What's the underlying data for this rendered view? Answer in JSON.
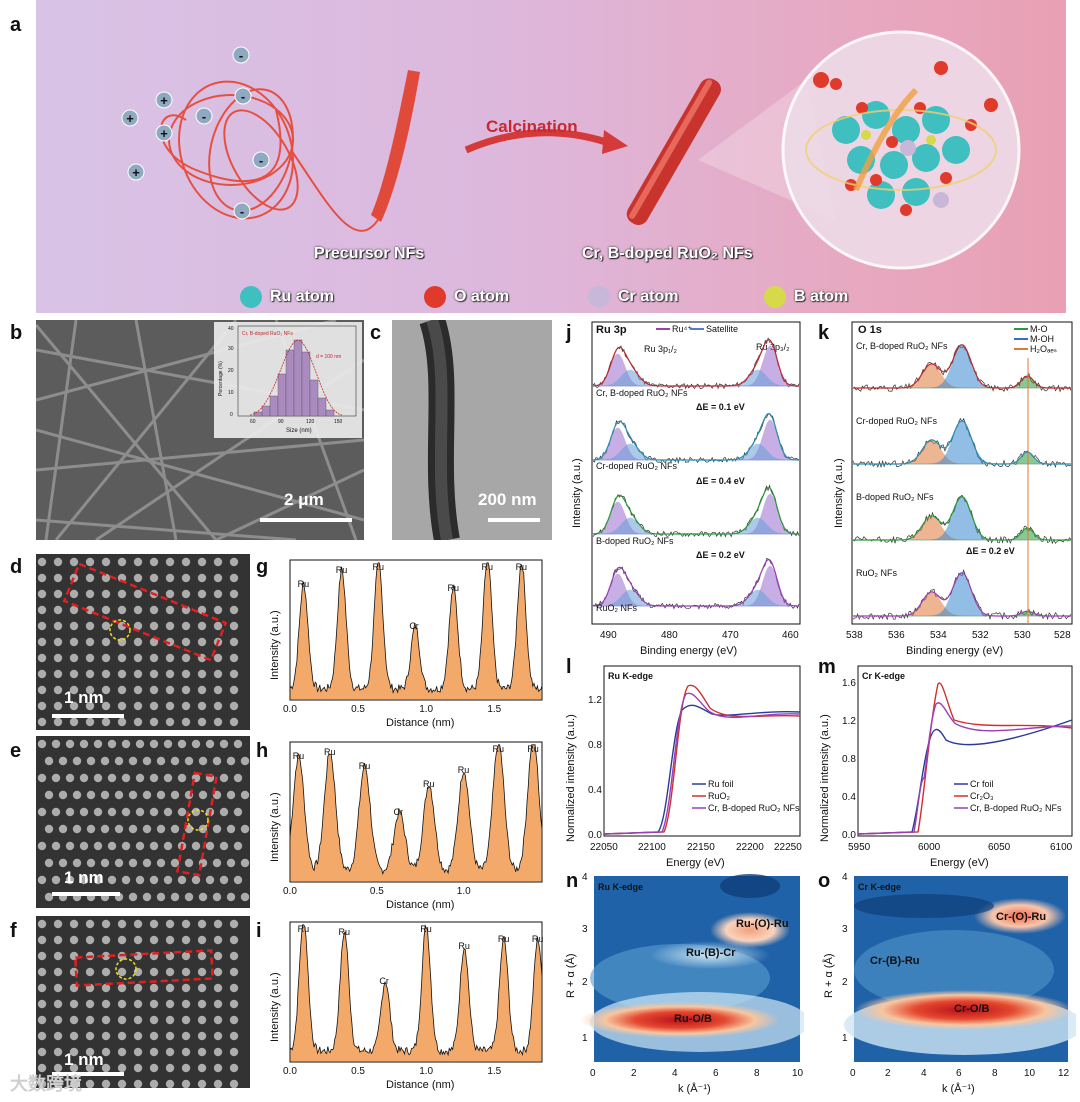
{
  "panel_letters": {
    "a": "a",
    "b": "b",
    "c": "c",
    "d": "d",
    "e": "e",
    "f": "f",
    "g": "g",
    "h": "h",
    "i": "i",
    "j": "j",
    "k": "k",
    "l": "l",
    "m": "m",
    "n": "n",
    "o": "o"
  },
  "schematic": {
    "calcination": "Calcination",
    "precursor": "Precursor NFs",
    "product": "Cr, B-doped RuO₂ NFs",
    "legend": [
      {
        "label": "Ru atom",
        "color": "#3fbfbf"
      },
      {
        "label": "O atom",
        "color": "#e03a2a"
      },
      {
        "label": "Cr atom",
        "color": "#c9b7d9"
      },
      {
        "label": "B atom",
        "color": "#d6d94a"
      }
    ],
    "charge_plus": "+",
    "charge_minus": "-"
  },
  "sem": {
    "scale": "2 μm",
    "inset_title": "Cr, B-doped RuO₂ NFs",
    "inset_d": "d = 100 nm",
    "inset_xlabel": "Size (nm)",
    "inset_ylabel": "Percentage (%)",
    "inset_xticks": [
      "60",
      "90",
      "120",
      "150"
    ],
    "inset_yticks": [
      "0",
      "10",
      "20",
      "30",
      "40"
    ]
  },
  "tem": {
    "scale": "200 nm"
  },
  "haadf": [
    {
      "scale": "1 nm"
    },
    {
      "scale": "1 nm"
    },
    {
      "scale": "1 nm"
    }
  ],
  "watermark": "大数跨境",
  "profiles": [
    {
      "id": "g",
      "xlabel": "Distance (nm)",
      "ylabel": "Intensity (a.u.)",
      "xticks": [
        "0.0",
        "0.5",
        "1.0",
        "1.5"
      ],
      "xmax": 1.85,
      "peaks": [
        {
          "x": 0.1,
          "h": 0.75,
          "label": "Ru"
        },
        {
          "x": 0.38,
          "h": 0.85,
          "label": "Ru"
        },
        {
          "x": 0.65,
          "h": 0.9,
          "label": "Ru"
        },
        {
          "x": 0.92,
          "h": 0.45,
          "label": "Cr"
        },
        {
          "x": 1.2,
          "h": 0.72,
          "label": "Ru"
        },
        {
          "x": 1.45,
          "h": 0.92,
          "label": "Ru"
        },
        {
          "x": 1.7,
          "h": 0.9,
          "label": "Ru"
        }
      ]
    },
    {
      "id": "h",
      "xlabel": "Distance (nm)",
      "ylabel": "Intensity (a.u.)",
      "xticks": [
        "0.0",
        "0.5",
        "1.0"
      ],
      "xmax": 1.45,
      "peaks": [
        {
          "x": 0.05,
          "h": 0.82,
          "label": "Ru"
        },
        {
          "x": 0.23,
          "h": 0.85,
          "label": "Ru"
        },
        {
          "x": 0.43,
          "h": 0.75,
          "label": "Ru"
        },
        {
          "x": 0.63,
          "h": 0.42,
          "label": "Cr"
        },
        {
          "x": 0.8,
          "h": 0.62,
          "label": "Ru"
        },
        {
          "x": 1.0,
          "h": 0.72,
          "label": "Ru"
        },
        {
          "x": 1.2,
          "h": 0.92,
          "label": "Ru"
        },
        {
          "x": 1.4,
          "h": 0.95,
          "label": "Ru"
        }
      ]
    },
    {
      "id": "i",
      "xlabel": "Distance (nm)",
      "ylabel": "Intensity (a.u.)",
      "xticks": [
        "0.0",
        "0.5",
        "1.0",
        "1.5"
      ],
      "xmax": 1.85,
      "peaks": [
        {
          "x": 0.1,
          "h": 0.95,
          "label": "Ru"
        },
        {
          "x": 0.4,
          "h": 0.85,
          "label": "Ru"
        },
        {
          "x": 0.7,
          "h": 0.5,
          "label": "Cr"
        },
        {
          "x": 1.0,
          "h": 0.9,
          "label": "Ru"
        },
        {
          "x": 1.28,
          "h": 0.75,
          "label": "Ru"
        },
        {
          "x": 1.57,
          "h": 0.8,
          "label": "Ru"
        },
        {
          "x": 1.82,
          "h": 0.8,
          "label": "Ru"
        }
      ]
    }
  ],
  "chart_data": [
    {
      "type": "line",
      "panel": "j",
      "title": "Ru 3p",
      "legend": [
        "Ru⁴⁺",
        "Satellite"
      ],
      "xlabel": "Binding energy (eV)",
      "ylabel": "Intensity (a.u.)",
      "xticks": [
        "490",
        "480",
        "470",
        "460"
      ],
      "peak_labels": [
        "Ru 3p₁/₂",
        "Ru 3p₃/₂"
      ],
      "series": [
        "Cr, B-doped RuO₂ NFs",
        "Cr-doped RuO₂ NFs",
        "B-doped RuO₂ NFs",
        "RuO₂ NFs"
      ],
      "series_colors": [
        "#c0282e",
        "#2a8fb5",
        "#2b9a3a",
        "#9b3fb5"
      ],
      "shifts": [
        "ΔE = 0.1 eV",
        "ΔE = 0.4 eV",
        "ΔE = 0.2 eV"
      ]
    },
    {
      "type": "line",
      "panel": "k",
      "title": "O 1s",
      "legend": [
        "M-O",
        "M-OH",
        "H₂Oₐₑₛ"
      ],
      "xlabel": "Binding energy (eV)",
      "ylabel": "Intensity (a.u.)",
      "xticks": [
        "538",
        "536",
        "534",
        "532",
        "530",
        "528"
      ],
      "series": [
        "Cr, B-doped RuO₂ NFs",
        "Cr-doped RuO₂ NFs",
        "B-doped RuO₂ NFs",
        "RuO₂ NFs"
      ],
      "series_colors": [
        "#c0282e",
        "#2a8fb5",
        "#2b9a3a",
        "#9b3fb5"
      ],
      "shift": "ΔE = 0.2 eV"
    },
    {
      "type": "line",
      "panel": "l",
      "title": "Ru K-edge",
      "xlabel": "Energy (eV)",
      "ylabel": "Normalized intensity (a.u.)",
      "xticks": [
        "22050",
        "22100",
        "22150",
        "22200",
        "22250"
      ],
      "yticks": [
        "0.0",
        "0.4",
        "0.8",
        "1.2"
      ],
      "legend": [
        "Ru foil",
        "RuO₂",
        "Cr, B-doped RuO₂ NFs"
      ],
      "legend_colors": [
        "#2a3a9a",
        "#d0302f",
        "#9b3fb5"
      ]
    },
    {
      "type": "line",
      "panel": "m",
      "title": "Cr K-edge",
      "xlabel": "Energy (eV)",
      "ylabel": "Normalized intensity (a.u.)",
      "xticks": [
        "5950",
        "6000",
        "6050",
        "6100"
      ],
      "yticks": [
        "0.0",
        "0.4",
        "0.8",
        "1.2",
        "1.6"
      ],
      "legend": [
        "Cr foil",
        "Cr₂O₃",
        "Cr, B-doped RuO₂ NFs"
      ],
      "legend_colors": [
        "#2a3a9a",
        "#d0302f",
        "#9b3fb5"
      ]
    },
    {
      "type": "heatmap",
      "panel": "n",
      "title": "Ru K-edge",
      "xlabel": "k (Å⁻¹)",
      "ylabel": "R + α (Å)",
      "xticks": [
        "0",
        "2",
        "4",
        "6",
        "8",
        "10"
      ],
      "yticks": [
        "1",
        "2",
        "3",
        "4"
      ],
      "annotations": [
        "Ru-(O)-Ru",
        "Ru-(B)-Cr",
        "Ru-O/B"
      ]
    },
    {
      "type": "heatmap",
      "panel": "o",
      "title": "Cr K-edge",
      "xlabel": "k (Å⁻¹)",
      "ylabel": "R + α (Å)",
      "xticks": [
        "0",
        "2",
        "4",
        "6",
        "8",
        "10",
        "12"
      ],
      "yticks": [
        "1",
        "2",
        "3",
        "4"
      ],
      "annotations": [
        "Cr-(O)-Ru",
        "Cr-(B)-Ru",
        "Cr-O/B"
      ]
    }
  ]
}
